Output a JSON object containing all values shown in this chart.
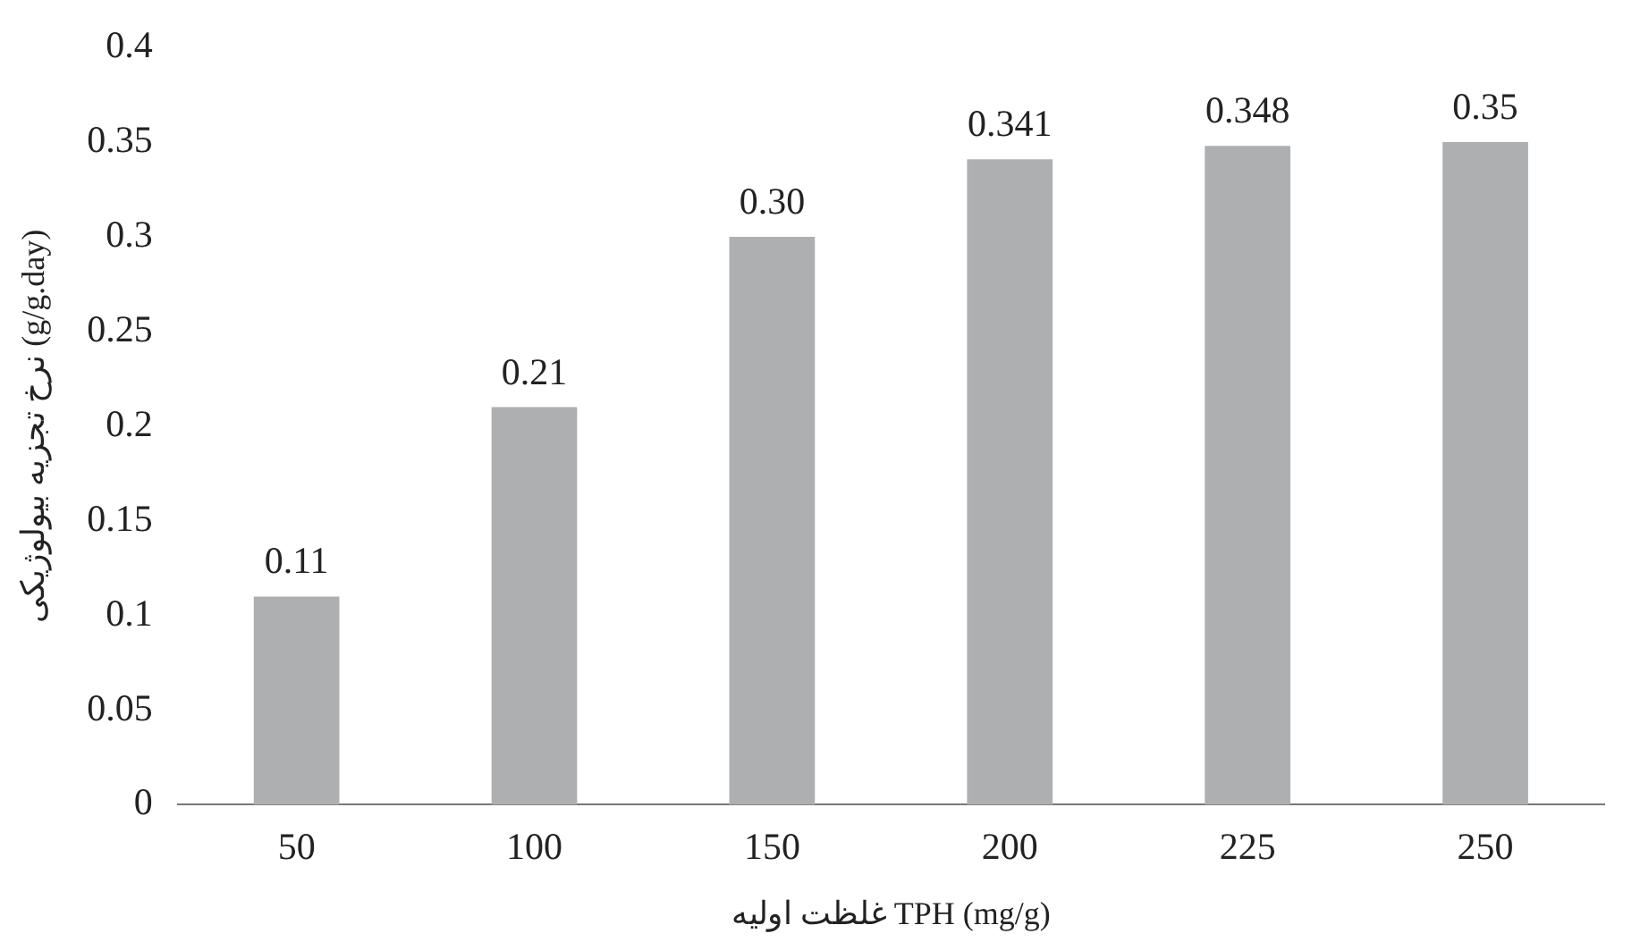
{
  "chart_data": {
    "type": "bar",
    "xlabel": "غلظت اولیه TPH (mg/g)",
    "ylabel": "نرخ تجزیه بیولوژیکی (g/g.day)",
    "categories": [
      "50",
      "100",
      "150",
      "200",
      "225",
      "250"
    ],
    "values": [
      0.11,
      0.21,
      0.3,
      0.341,
      0.348,
      0.35
    ],
    "value_labels": [
      "0.11",
      "0.21",
      "0.30",
      "0.341",
      "0.348",
      "0.35"
    ],
    "color": "#aeafb1",
    "ylim": [
      0,
      0.4
    ],
    "yticks": [
      0,
      0.05,
      0.1,
      0.15,
      0.2,
      0.25,
      0.3,
      0.35,
      0.4
    ],
    "grid": false,
    "legend": false
  }
}
